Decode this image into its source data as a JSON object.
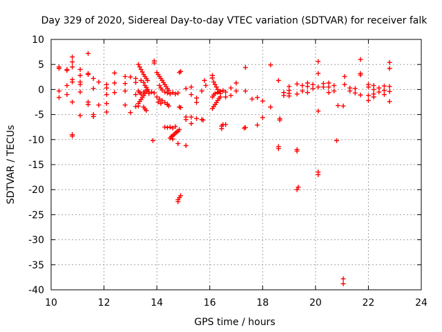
{
  "chart_data": {
    "type": "scatter",
    "title": "Day 329 of 2020, Sidereal Day-to-day VTEC variation (SDTVAR) for receiver falk",
    "xlabel": "GPS time / hours",
    "ylabel": "SDTVAR / TECUs",
    "xlim": [
      10,
      24
    ],
    "ylim": [
      -40,
      10
    ],
    "xticks": [
      "10",
      "12",
      "14",
      "16",
      "18",
      "20",
      "22",
      "24"
    ],
    "yticks": [
      "10",
      "5",
      "0",
      "-5",
      "-10",
      "-15",
      "-20",
      "-25",
      "-30",
      "-35",
      "-40"
    ],
    "grid": true,
    "marker": "plus",
    "color": "#ff0000",
    "series": [
      {
        "name": "SDTVAR",
        "points": [
          [
            10.3,
            4.5
          ],
          [
            10.3,
            4.2
          ],
          [
            10.3,
            -0.3
          ],
          [
            10.3,
            -1.6
          ],
          [
            10.6,
            4.0
          ],
          [
            10.6,
            3.8
          ],
          [
            10.6,
            -1.0
          ],
          [
            10.6,
            0.8
          ],
          [
            10.8,
            6.5
          ],
          [
            10.8,
            5.5
          ],
          [
            10.8,
            4.5
          ],
          [
            10.8,
            2.0
          ],
          [
            10.8,
            1.5
          ],
          [
            10.8,
            -2.5
          ],
          [
            10.8,
            -9.0
          ],
          [
            10.8,
            -9.3
          ],
          [
            11.1,
            4.0
          ],
          [
            11.1,
            2.8
          ],
          [
            11.1,
            1.5
          ],
          [
            11.1,
            1.0
          ],
          [
            11.1,
            -0.5
          ],
          [
            11.1,
            -5.2
          ],
          [
            11.4,
            7.2
          ],
          [
            11.4,
            3.2
          ],
          [
            11.4,
            3.0
          ],
          [
            11.4,
            -2.5
          ],
          [
            11.4,
            -3.0
          ],
          [
            11.6,
            2.2
          ],
          [
            11.6,
            0.2
          ],
          [
            11.6,
            -5.0
          ],
          [
            11.6,
            -5.4
          ],
          [
            11.8,
            1.5
          ],
          [
            11.8,
            -3.1
          ],
          [
            12.1,
            1.0
          ],
          [
            12.1,
            0.3
          ],
          [
            12.1,
            -1.0
          ],
          [
            12.1,
            -2.8
          ],
          [
            12.1,
            -4.5
          ],
          [
            12.4,
            3.3
          ],
          [
            12.4,
            1.3
          ],
          [
            12.4,
            -0.6
          ],
          [
            12.8,
            2.6
          ],
          [
            12.8,
            1.2
          ],
          [
            12.8,
            -0.3
          ],
          [
            12.8,
            -3.1
          ],
          [
            13.0,
            2.5
          ],
          [
            13.0,
            -4.6
          ],
          [
            13.2,
            2.2
          ],
          [
            13.2,
            1.4
          ],
          [
            13.2,
            -1.0
          ],
          [
            13.2,
            -3.4
          ],
          [
            13.3,
            5.0
          ],
          [
            13.35,
            4.5
          ],
          [
            13.4,
            4.0
          ],
          [
            13.45,
            3.5
          ],
          [
            13.5,
            3.0
          ],
          [
            13.55,
            2.6
          ],
          [
            13.6,
            2.2
          ],
          [
            13.65,
            1.8
          ],
          [
            13.4,
            1.8
          ],
          [
            13.5,
            1.4
          ],
          [
            13.55,
            0.8
          ],
          [
            13.6,
            0.4
          ],
          [
            13.65,
            0.0
          ],
          [
            13.7,
            -0.5
          ],
          [
            13.3,
            -0.3
          ],
          [
            13.35,
            -0.6
          ],
          [
            13.4,
            -0.9
          ],
          [
            13.5,
            -0.5
          ],
          [
            13.6,
            -0.2
          ],
          [
            13.7,
            -0.8
          ],
          [
            13.8,
            -0.5
          ],
          [
            13.9,
            -0.7
          ],
          [
            13.4,
            -2.0
          ],
          [
            13.45,
            -1.6
          ],
          [
            13.5,
            -1.2
          ],
          [
            13.55,
            -0.8
          ],
          [
            13.35,
            -2.4
          ],
          [
            13.3,
            -2.8
          ],
          [
            13.3,
            -3.3
          ],
          [
            13.5,
            -3.5
          ],
          [
            13.55,
            -3.9
          ],
          [
            13.6,
            -4.2
          ],
          [
            13.9,
            5.7
          ],
          [
            13.9,
            5.3
          ],
          [
            13.85,
            -10.2
          ],
          [
            14.0,
            3.4
          ],
          [
            14.05,
            3.0
          ],
          [
            14.1,
            2.6
          ],
          [
            14.15,
            2.2
          ],
          [
            14.2,
            1.8
          ],
          [
            14.25,
            1.4
          ],
          [
            14.3,
            1.0
          ],
          [
            14.35,
            0.6
          ],
          [
            14.4,
            0.2
          ],
          [
            14.45,
            -0.2
          ],
          [
            14.1,
            0.8
          ],
          [
            14.15,
            0.3
          ],
          [
            14.2,
            -0.1
          ],
          [
            14.3,
            -0.5
          ],
          [
            14.4,
            -0.7
          ],
          [
            14.5,
            -0.9
          ],
          [
            14.6,
            -0.6
          ],
          [
            14.7,
            -0.9
          ],
          [
            14.8,
            -0.7
          ],
          [
            14.0,
            -1.5
          ],
          [
            14.1,
            -1.9
          ],
          [
            14.2,
            -2.2
          ],
          [
            14.3,
            -2.6
          ],
          [
            14.4,
            -2.9
          ],
          [
            14.05,
            -2.5
          ],
          [
            14.15,
            -2.8
          ],
          [
            14.4,
            -3.0
          ],
          [
            14.45,
            -3.3
          ],
          [
            14.3,
            -7.5
          ],
          [
            14.4,
            -7.6
          ],
          [
            14.5,
            -7.5
          ],
          [
            14.6,
            -7.7
          ],
          [
            14.7,
            -7.4
          ],
          [
            14.5,
            -9.7
          ],
          [
            14.55,
            -9.4
          ],
          [
            14.6,
            -9.2
          ],
          [
            14.65,
            -9.0
          ],
          [
            14.7,
            -8.7
          ],
          [
            14.75,
            -8.5
          ],
          [
            14.8,
            -8.3
          ],
          [
            14.85,
            -8.0
          ],
          [
            14.6,
            -9.9
          ],
          [
            14.85,
            -3.5
          ],
          [
            14.9,
            -3.6
          ],
          [
            14.9,
            3.6
          ],
          [
            14.85,
            3.4
          ],
          [
            14.8,
            -10.8
          ],
          [
            14.8,
            -22.0
          ],
          [
            14.85,
            -21.6
          ],
          [
            14.9,
            -21.2
          ],
          [
            14.8,
            -22.4
          ],
          [
            15.1,
            0.2
          ],
          [
            15.1,
            -5.5
          ],
          [
            15.1,
            -6.0
          ],
          [
            15.1,
            -11.2
          ],
          [
            15.3,
            0.5
          ],
          [
            15.3,
            -1.0
          ],
          [
            15.3,
            -5.5
          ],
          [
            15.3,
            -6.8
          ],
          [
            15.5,
            -1.7
          ],
          [
            15.5,
            -2.6
          ],
          [
            15.5,
            -5.8
          ],
          [
            15.7,
            -0.3
          ],
          [
            15.7,
            -6.0
          ],
          [
            15.75,
            -6.1
          ],
          [
            15.8,
            1.8
          ],
          [
            15.85,
            0.8
          ],
          [
            16.1,
            2.8
          ],
          [
            16.1,
            2.3
          ],
          [
            16.15,
            1.5
          ],
          [
            16.2,
            1.0
          ],
          [
            16.25,
            0.5
          ],
          [
            16.3,
            0.0
          ],
          [
            16.35,
            -0.4
          ],
          [
            16.4,
            -0.8
          ],
          [
            16.1,
            -1.5
          ],
          [
            16.15,
            -1.1
          ],
          [
            16.2,
            -0.8
          ],
          [
            16.3,
            -0.6
          ],
          [
            16.4,
            -0.4
          ],
          [
            16.5,
            -0.2
          ],
          [
            16.6,
            -0.5
          ],
          [
            16.1,
            -3.8
          ],
          [
            16.15,
            -3.4
          ],
          [
            16.2,
            -3.0
          ],
          [
            16.25,
            -2.6
          ],
          [
            16.3,
            -2.2
          ],
          [
            16.35,
            -1.8
          ],
          [
            16.4,
            -1.5
          ],
          [
            16.45,
            -7.3
          ],
          [
            16.5,
            -7.0
          ],
          [
            16.45,
            -7.8
          ],
          [
            16.6,
            -7.0
          ],
          [
            16.6,
            -1.5
          ],
          [
            16.8,
            0.3
          ],
          [
            16.8,
            -1.2
          ],
          [
            17.0,
            1.3
          ],
          [
            17.0,
            -0.3
          ],
          [
            17.35,
            4.4
          ],
          [
            17.35,
            -0.3
          ],
          [
            17.3,
            -7.7
          ],
          [
            17.35,
            -7.6
          ],
          [
            17.6,
            -1.9
          ],
          [
            17.8,
            -1.6
          ],
          [
            17.8,
            -7.1
          ],
          [
            18.0,
            -2.3
          ],
          [
            18.0,
            -5.6
          ],
          [
            18.3,
            4.9
          ],
          [
            18.3,
            -3.5
          ],
          [
            18.6,
            1.8
          ],
          [
            18.6,
            -11.4
          ],
          [
            18.6,
            -11.8
          ],
          [
            18.65,
            -5.8
          ],
          [
            18.65,
            -6.1
          ],
          [
            18.8,
            -0.6
          ],
          [
            18.8,
            -1.2
          ],
          [
            19.0,
            0.6
          ],
          [
            19.0,
            -0.2
          ],
          [
            19.0,
            -0.8
          ],
          [
            19.0,
            -1.3
          ],
          [
            19.3,
            -12.0
          ],
          [
            19.3,
            -12.3
          ],
          [
            19.35,
            -19.5
          ],
          [
            19.3,
            -20.0
          ],
          [
            19.3,
            1.1
          ],
          [
            19.3,
            -0.9
          ],
          [
            19.5,
            0.8
          ],
          [
            19.5,
            -0.3
          ],
          [
            19.7,
            1.3
          ],
          [
            19.7,
            0.6
          ],
          [
            19.7,
            -0.6
          ],
          [
            19.9,
            1.0
          ],
          [
            19.9,
            0.2
          ],
          [
            20.1,
            5.6
          ],
          [
            20.1,
            3.2
          ],
          [
            20.1,
            0.5
          ],
          [
            20.1,
            -4.3
          ],
          [
            20.1,
            -16.5
          ],
          [
            20.1,
            -17.0
          ],
          [
            20.3,
            1.2
          ],
          [
            20.3,
            0.5
          ],
          [
            20.5,
            1.3
          ],
          [
            20.5,
            0.5
          ],
          [
            20.5,
            -0.6
          ],
          [
            20.7,
            0.8
          ],
          [
            20.7,
            -0.3
          ],
          [
            20.8,
            -10.2
          ],
          [
            20.85,
            -3.2
          ],
          [
            21.1,
            2.6
          ],
          [
            21.1,
            1.0
          ],
          [
            21.05,
            -3.3
          ],
          [
            21.05,
            -37.8
          ],
          [
            21.05,
            -38.8
          ],
          [
            21.3,
            0.3
          ],
          [
            21.3,
            -0.3
          ],
          [
            21.5,
            0.2
          ],
          [
            21.5,
            -0.7
          ],
          [
            21.7,
            6.0
          ],
          [
            21.7,
            3.2
          ],
          [
            21.7,
            2.9
          ],
          [
            21.7,
            -1.1
          ],
          [
            22.0,
            1.0
          ],
          [
            22.0,
            0.5
          ],
          [
            22.0,
            -1.2
          ],
          [
            22.0,
            -2.2
          ],
          [
            22.2,
            0.8
          ],
          [
            22.2,
            0.0
          ],
          [
            22.2,
            -0.9
          ],
          [
            22.2,
            -1.5
          ],
          [
            22.4,
            0.3
          ],
          [
            22.4,
            -0.5
          ],
          [
            22.6,
            0.7
          ],
          [
            22.6,
            -0.2
          ],
          [
            22.6,
            -1.0
          ],
          [
            22.8,
            5.4
          ],
          [
            22.8,
            4.2
          ],
          [
            22.8,
            0.6
          ],
          [
            22.8,
            -0.4
          ],
          [
            22.8,
            -2.4
          ]
        ]
      }
    ]
  }
}
